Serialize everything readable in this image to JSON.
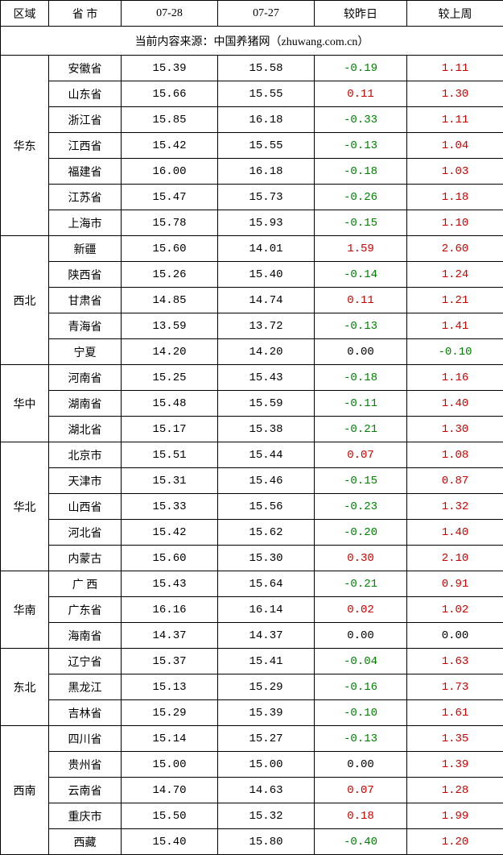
{
  "header": {
    "region": "区域",
    "province": "省 市",
    "date1": "07-28",
    "date2": "07-27",
    "vs_yesterday": "较昨日",
    "vs_lastweek": "较上周"
  },
  "source_line": "当前内容来源：中国养猪网（zhuwang.com.cn）",
  "colors": {
    "border": "#000000",
    "background": "#ffffff",
    "text": "#000000",
    "negative": "#008000",
    "positive": "#cc0000"
  },
  "regions": [
    {
      "name": "华东",
      "rows": [
        {
          "prov": "安徽省",
          "d1": "15.39",
          "d2": "15.58",
          "chg1": "-0.19",
          "chg2": "1.11"
        },
        {
          "prov": "山东省",
          "d1": "15.66",
          "d2": "15.55",
          "chg1": "0.11",
          "chg2": "1.30"
        },
        {
          "prov": "浙江省",
          "d1": "15.85",
          "d2": "16.18",
          "chg1": "-0.33",
          "chg2": "1.11"
        },
        {
          "prov": "江西省",
          "d1": "15.42",
          "d2": "15.55",
          "chg1": "-0.13",
          "chg2": "1.04"
        },
        {
          "prov": "福建省",
          "d1": "16.00",
          "d2": "16.18",
          "chg1": "-0.18",
          "chg2": "1.03"
        },
        {
          "prov": "江苏省",
          "d1": "15.47",
          "d2": "15.73",
          "chg1": "-0.26",
          "chg2": "1.18"
        },
        {
          "prov": "上海市",
          "d1": "15.78",
          "d2": "15.93",
          "chg1": "-0.15",
          "chg2": "1.10"
        }
      ]
    },
    {
      "name": "西北",
      "rows": [
        {
          "prov": "新疆",
          "d1": "15.60",
          "d2": "14.01",
          "chg1": "1.59",
          "chg2": "2.60"
        },
        {
          "prov": "陕西省",
          "d1": "15.26",
          "d2": "15.40",
          "chg1": "-0.14",
          "chg2": "1.24"
        },
        {
          "prov": "甘肃省",
          "d1": "14.85",
          "d2": "14.74",
          "chg1": "0.11",
          "chg2": "1.21"
        },
        {
          "prov": "青海省",
          "d1": "13.59",
          "d2": "13.72",
          "chg1": "-0.13",
          "chg2": "1.41"
        },
        {
          "prov": "宁夏",
          "d1": "14.20",
          "d2": "14.20",
          "chg1": "0.00",
          "chg2": "-0.10"
        }
      ]
    },
    {
      "name": "华中",
      "rows": [
        {
          "prov": "河南省",
          "d1": "15.25",
          "d2": "15.43",
          "chg1": "-0.18",
          "chg2": "1.16"
        },
        {
          "prov": "湖南省",
          "d1": "15.48",
          "d2": "15.59",
          "chg1": "-0.11",
          "chg2": "1.40"
        },
        {
          "prov": "湖北省",
          "d1": "15.17",
          "d2": "15.38",
          "chg1": "-0.21",
          "chg2": "1.30"
        }
      ]
    },
    {
      "name": "华北",
      "rows": [
        {
          "prov": "北京市",
          "d1": "15.51",
          "d2": "15.44",
          "chg1": "0.07",
          "chg2": "1.08"
        },
        {
          "prov": "天津市",
          "d1": "15.31",
          "d2": "15.46",
          "chg1": "-0.15",
          "chg2": "0.87"
        },
        {
          "prov": "山西省",
          "d1": "15.33",
          "d2": "15.56",
          "chg1": "-0.23",
          "chg2": "1.32"
        },
        {
          "prov": "河北省",
          "d1": "15.42",
          "d2": "15.62",
          "chg1": "-0.20",
          "chg2": "1.40"
        },
        {
          "prov": "内蒙古",
          "d1": "15.60",
          "d2": "15.30",
          "chg1": "0.30",
          "chg2": "2.10"
        }
      ]
    },
    {
      "name": "华南",
      "rows": [
        {
          "prov": "广 西",
          "d1": "15.43",
          "d2": "15.64",
          "chg1": "-0.21",
          "chg2": "0.91"
        },
        {
          "prov": "广东省",
          "d1": "16.16",
          "d2": "16.14",
          "chg1": "0.02",
          "chg2": "1.02"
        },
        {
          "prov": "海南省",
          "d1": "14.37",
          "d2": "14.37",
          "chg1": "0.00",
          "chg2": "0.00"
        }
      ]
    },
    {
      "name": "东北",
      "rows": [
        {
          "prov": "辽宁省",
          "d1": "15.37",
          "d2": "15.41",
          "chg1": "-0.04",
          "chg2": "1.63"
        },
        {
          "prov": "黑龙江",
          "d1": "15.13",
          "d2": "15.29",
          "chg1": "-0.16",
          "chg2": "1.73"
        },
        {
          "prov": "吉林省",
          "d1": "15.29",
          "d2": "15.39",
          "chg1": "-0.10",
          "chg2": "1.61"
        }
      ]
    },
    {
      "name": "西南",
      "rows": [
        {
          "prov": "四川省",
          "d1": "15.14",
          "d2": "15.27",
          "chg1": "-0.13",
          "chg2": "1.35"
        },
        {
          "prov": "贵州省",
          "d1": "15.00",
          "d2": "15.00",
          "chg1": "0.00",
          "chg2": "1.39"
        },
        {
          "prov": "云南省",
          "d1": "14.70",
          "d2": "14.63",
          "chg1": "0.07",
          "chg2": "1.28"
        },
        {
          "prov": "重庆市",
          "d1": "15.50",
          "d2": "15.32",
          "chg1": "0.18",
          "chg2": "1.99"
        },
        {
          "prov": "西藏",
          "d1": "15.40",
          "d2": "15.80",
          "chg1": "-0.40",
          "chg2": "1.20"
        }
      ]
    }
  ]
}
